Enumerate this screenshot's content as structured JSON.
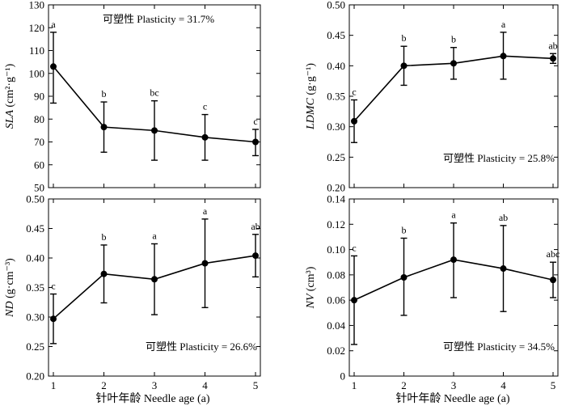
{
  "x_axis_title": "针叶年龄 Needle age (a)",
  "chart_data": [
    {
      "id": "sla",
      "type": "line",
      "ylabel_italic": "SLA",
      "ylabel_unit": "(cm²·g⁻¹)",
      "x": [
        1,
        2,
        3,
        4,
        5
      ],
      "xlim": [
        1,
        5
      ],
      "ylim": [
        50,
        130
      ],
      "yticks": [
        50,
        60,
        70,
        80,
        90,
        100,
        110,
        120,
        130
      ],
      "ytick_labels": [
        "50",
        "60",
        "70",
        "80",
        "90",
        "100",
        "110",
        "120",
        "130"
      ],
      "values": [
        103,
        76.5,
        75,
        72,
        70
      ],
      "err_low": [
        87,
        65.5,
        62,
        62,
        64
      ],
      "err_high": [
        118,
        87.5,
        88,
        82,
        75.5
      ],
      "letters": [
        "a",
        "b",
        "bc",
        "c",
        "c"
      ],
      "plasticity": "可塑性 Plasticity = 31.7%",
      "plasticity_position": "top-center"
    },
    {
      "id": "ldmc",
      "type": "line",
      "ylabel_italic": "LDMC",
      "ylabel_unit": "(g·g⁻¹)",
      "x": [
        1,
        2,
        3,
        4,
        5
      ],
      "xlim": [
        1,
        5
      ],
      "ylim": [
        0.2,
        0.5
      ],
      "yticks": [
        0.2,
        0.25,
        0.3,
        0.35,
        0.4,
        0.45,
        0.5
      ],
      "ytick_labels": [
        "0.20",
        "0.25",
        "0.30",
        "0.35",
        "0.40",
        "0.45",
        "0.50"
      ],
      "values": [
        0.309,
        0.4,
        0.404,
        0.416,
        0.412
      ],
      "err_low": [
        0.274,
        0.368,
        0.378,
        0.378,
        0.404
      ],
      "err_high": [
        0.344,
        0.432,
        0.43,
        0.455,
        0.42
      ],
      "letters": [
        "c",
        "b",
        "b",
        "a",
        "ab"
      ],
      "plasticity": "可塑性 Plasticity = 25.8%",
      "plasticity_position": "bottom-right"
    },
    {
      "id": "nd",
      "type": "line",
      "ylabel_italic": "ND",
      "ylabel_unit": "(g·cm⁻³)",
      "x": [
        1,
        2,
        3,
        4,
        5
      ],
      "xlim": [
        1,
        5
      ],
      "ylim": [
        0.2,
        0.5
      ],
      "yticks": [
        0.2,
        0.25,
        0.3,
        0.35,
        0.4,
        0.45,
        0.5
      ],
      "ytick_labels": [
        "0.20",
        "0.25",
        "0.30",
        "0.35",
        "0.40",
        "0.45",
        "0.50"
      ],
      "values": [
        0.297,
        0.373,
        0.364,
        0.391,
        0.404
      ],
      "err_low": [
        0.255,
        0.324,
        0.304,
        0.316,
        0.368
      ],
      "err_high": [
        0.339,
        0.422,
        0.424,
        0.466,
        0.44
      ],
      "letters": [
        "c",
        "b",
        "a",
        "a",
        "ab"
      ],
      "plasticity": "可塑性 Plasticity = 26.6%",
      "plasticity_position": "bottom-right"
    },
    {
      "id": "nv",
      "type": "line",
      "ylabel_italic": "NV",
      "ylabel_unit": "(cm³)",
      "x": [
        1,
        2,
        3,
        4,
        5
      ],
      "xlim": [
        1,
        5
      ],
      "ylim": [
        0,
        0.14
      ],
      "yticks": [
        0,
        0.02,
        0.04,
        0.06,
        0.08,
        0.1,
        0.12,
        0.14
      ],
      "ytick_labels": [
        "0",
        "0.02",
        "0.04",
        "0.06",
        "0.08",
        "0.10",
        "0.12",
        "0.14"
      ],
      "values": [
        0.06,
        0.078,
        0.092,
        0.085,
        0.076
      ],
      "err_low": [
        0.025,
        0.048,
        0.062,
        0.051,
        0.062
      ],
      "err_high": [
        0.095,
        0.109,
        0.121,
        0.119,
        0.09
      ],
      "letters": [
        "c",
        "b",
        "a",
        "ab",
        "abc"
      ],
      "plasticity": "可塑性 Plasticity = 34.5%",
      "plasticity_position": "bottom-right"
    }
  ]
}
